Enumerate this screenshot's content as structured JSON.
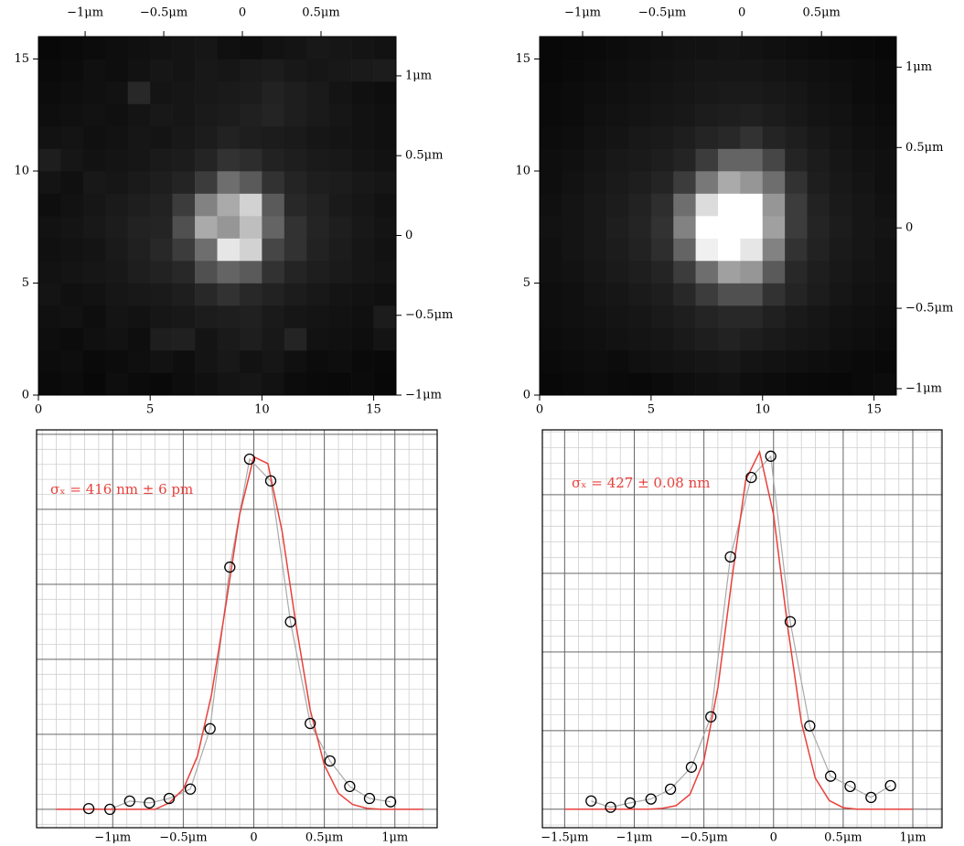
{
  "chart_data": [
    {
      "type": "heatmap",
      "colormap": "gray",
      "zlim": [
        0,
        255
      ],
      "xlim": [
        0,
        16
      ],
      "ylim": [
        0,
        16
      ],
      "xticks": [
        0,
        5,
        10,
        15
      ],
      "yticks": [
        0,
        5,
        10,
        15
      ],
      "x2lim": [
        -1.297,
        0.977
      ],
      "x2ticks": [
        {
          "value": -1,
          "label": "−1μm"
        },
        {
          "value": -0.5,
          "label": "−0.5μm"
        },
        0,
        {
          "value": 0.5,
          "label": "0.5μm"
        }
      ],
      "y2lim": [
        -1,
        1.246
      ],
      "y2ticks": [
        {
          "value": 1,
          "label": "1μm"
        },
        {
          "value": 0.5,
          "label": "0.5μm"
        },
        0,
        {
          "value": -0.5,
          "label": "−0.5μm"
        },
        {
          "value": -1,
          "label": "−1μm"
        }
      ],
      "z": [
        [
          10,
          12,
          8,
          14,
          11,
          9,
          13,
          16,
          20,
          22,
          18,
          12,
          10,
          9,
          11,
          8
        ],
        [
          12,
          14,
          10,
          12,
          15,
          18,
          14,
          20,
          24,
          18,
          22,
          16,
          12,
          14,
          10,
          9
        ],
        [
          14,
          12,
          16,
          18,
          14,
          30,
          32,
          20,
          26,
          30,
          24,
          36,
          18,
          16,
          14,
          20
        ],
        [
          16,
          18,
          14,
          20,
          18,
          22,
          24,
          28,
          30,
          32,
          26,
          22,
          20,
          18,
          16,
          28
        ],
        [
          20,
          16,
          18,
          22,
          24,
          26,
          30,
          40,
          50,
          40,
          34,
          28,
          24,
          20,
          18,
          16
        ],
        [
          18,
          20,
          22,
          24,
          30,
          34,
          40,
          80,
          100,
          90,
          50,
          36,
          30,
          26,
          22,
          20
        ],
        [
          16,
          18,
          20,
          26,
          32,
          40,
          60,
          110,
          230,
          210,
          70,
          50,
          34,
          28,
          22,
          18
        ],
        [
          18,
          20,
          24,
          28,
          34,
          36,
          80,
          170,
          150,
          190,
          100,
          50,
          36,
          30,
          24,
          20
        ],
        [
          14,
          18,
          22,
          26,
          30,
          34,
          60,
          130,
          170,
          210,
          90,
          40,
          34,
          26,
          22,
          18
        ],
        [
          20,
          16,
          24,
          22,
          26,
          30,
          36,
          60,
          110,
          90,
          50,
          36,
          30,
          28,
          24,
          22
        ],
        [
          30,
          22,
          18,
          20,
          22,
          26,
          28,
          36,
          50,
          45,
          34,
          30,
          26,
          24,
          20,
          18
        ],
        [
          18,
          20,
          16,
          18,
          22,
          20,
          24,
          28,
          34,
          30,
          28,
          26,
          22,
          20,
          18,
          16
        ],
        [
          14,
          16,
          18,
          16,
          20,
          24,
          22,
          26,
          28,
          32,
          36,
          30,
          26,
          22,
          18,
          16
        ],
        [
          12,
          14,
          16,
          18,
          40,
          20,
          22,
          24,
          26,
          28,
          34,
          30,
          26,
          20,
          16,
          14
        ],
        [
          10,
          12,
          16,
          14,
          18,
          22,
          20,
          24,
          22,
          26,
          28,
          24,
          22,
          24,
          26,
          28
        ],
        [
          8,
          10,
          12,
          14,
          16,
          18,
          20,
          22,
          16,
          14,
          18,
          20,
          24,
          22,
          20,
          18
        ]
      ]
    },
    {
      "type": "heatmap",
      "colormap": "gray",
      "zlim": [
        0,
        255
      ],
      "xlim": [
        0,
        16
      ],
      "ylim": [
        0,
        16
      ],
      "xticks": [
        0,
        5,
        10,
        15
      ],
      "yticks": [
        0,
        5,
        10,
        15
      ],
      "x2lim": [
        -1.27,
        0.97
      ],
      "x2ticks": [
        {
          "value": -1,
          "label": "−1μm"
        },
        {
          "value": -0.5,
          "label": "−0.5μm"
        },
        0,
        {
          "value": 0.5,
          "label": "0.5μm"
        }
      ],
      "y2lim": [
        -1.04,
        1.19
      ],
      "y2ticks": [
        {
          "value": 1,
          "label": "1μm"
        },
        {
          "value": 0.5,
          "label": "0.5μm"
        },
        0,
        {
          "value": -0.5,
          "label": "−0.5μm"
        },
        {
          "value": -1,
          "label": "−1μm"
        }
      ],
      "z": [
        [
          8,
          10,
          12,
          10,
          9,
          11,
          14,
          16,
          18,
          14,
          12,
          10,
          9,
          8,
          10,
          12
        ],
        [
          10,
          12,
          14,
          12,
          16,
          18,
          20,
          22,
          24,
          20,
          18,
          16,
          14,
          12,
          10,
          9
        ],
        [
          12,
          14,
          16,
          18,
          20,
          22,
          26,
          30,
          34,
          30,
          26,
          22,
          20,
          16,
          14,
          12
        ],
        [
          14,
          16,
          18,
          20,
          22,
          26,
          30,
          36,
          40,
          40,
          32,
          26,
          22,
          18,
          16,
          14
        ],
        [
          14,
          16,
          20,
          22,
          26,
          30,
          40,
          60,
          80,
          80,
          50,
          36,
          28,
          22,
          18,
          16
        ],
        [
          16,
          18,
          22,
          26,
          30,
          36,
          60,
          110,
          160,
          150,
          90,
          40,
          30,
          24,
          20,
          18
        ],
        [
          16,
          20,
          24,
          28,
          34,
          46,
          100,
          240,
          255,
          230,
          130,
          50,
          34,
          26,
          22,
          18
        ],
        [
          18,
          20,
          24,
          30,
          36,
          50,
          130,
          255,
          255,
          255,
          160,
          60,
          36,
          28,
          22,
          20
        ],
        [
          16,
          20,
          24,
          28,
          34,
          46,
          110,
          220,
          255,
          255,
          150,
          60,
          34,
          26,
          22,
          18
        ],
        [
          14,
          18,
          22,
          26,
          30,
          36,
          60,
          120,
          170,
          150,
          110,
          50,
          30,
          24,
          20,
          16
        ],
        [
          14,
          16,
          20,
          24,
          26,
          30,
          36,
          60,
          100,
          100,
          70,
          36,
          28,
          22,
          18,
          16
        ],
        [
          12,
          14,
          18,
          20,
          24,
          26,
          30,
          36,
          40,
          50,
          36,
          30,
          24,
          20,
          16,
          14
        ],
        [
          10,
          12,
          16,
          18,
          20,
          22,
          24,
          28,
          30,
          32,
          28,
          24,
          20,
          18,
          14,
          12
        ],
        [
          10,
          12,
          14,
          16,
          18,
          20,
          22,
          24,
          26,
          26,
          24,
          22,
          18,
          16,
          12,
          10
        ],
        [
          8,
          10,
          12,
          14,
          16,
          18,
          20,
          22,
          22,
          22,
          20,
          18,
          16,
          14,
          12,
          10
        ],
        [
          8,
          9,
          10,
          12,
          14,
          16,
          18,
          18,
          20,
          18,
          16,
          14,
          12,
          10,
          9,
          8
        ]
      ]
    },
    {
      "type": "line",
      "annotation": "σₓ = 416 nm ± 6 pm",
      "annotation_color": "#e8413c",
      "xlim": [
        -1.54,
        1.3
      ],
      "ylim": [
        -0.049,
        1.012
      ],
      "xticks": [
        {
          "value": -1,
          "label": "−1μm"
        },
        {
          "value": -0.5,
          "label": "−0.5μm"
        },
        0,
        {
          "value": 0.5,
          "label": "0.5μm"
        },
        {
          "value": 1,
          "label": "1μm"
        }
      ],
      "yticks": [
        0,
        0.2,
        0.4,
        0.6,
        0.8,
        1.0
      ],
      "xminor": [
        -1.5,
        -1.4,
        -1.3,
        -1.2,
        -1.1,
        -1.0,
        -0.9,
        -0.8,
        -0.7,
        -0.6,
        -0.5,
        -0.4,
        -0.3,
        -0.2,
        -0.1,
        0,
        0.1,
        0.2,
        0.3,
        0.4,
        0.5,
        0.6,
        0.7,
        0.8,
        0.9,
        1.0,
        1.1,
        1.2,
        1.3
      ],
      "yminor": [
        -0.04,
        0,
        0.04,
        0.08,
        0.12,
        0.16,
        0.2,
        0.24,
        0.28,
        0.32,
        0.36,
        0.4,
        0.44,
        0.48,
        0.52,
        0.56,
        0.6,
        0.64,
        0.68,
        0.72,
        0.76,
        0.8,
        0.84,
        0.88,
        0.92,
        0.96,
        1.0
      ],
      "data": {
        "color": "#000000",
        "line_color": "#aaaaaa",
        "x": [
          -1.17,
          -1.02,
          -0.88,
          -0.74,
          -0.6,
          -0.45,
          -0.31,
          -0.17,
          -0.03,
          0.12,
          0.26,
          0.4,
          0.54,
          0.68,
          0.82,
          0.97
        ],
        "y": [
          0.002,
          0,
          0.022,
          0.017,
          0.029,
          0.054,
          0.215,
          0.646,
          0.934,
          0.876,
          0.5,
          0.229,
          0.129,
          0.061,
          0.029,
          0.02
        ]
      },
      "fit": {
        "color": "#e8413c",
        "x": [
          -1.4,
          -1.3,
          -1.2,
          -1.1,
          -1.0,
          -0.9,
          -0.8,
          -0.7,
          -0.6,
          -0.5,
          -0.4,
          -0.3,
          -0.2,
          -0.1,
          0,
          0.1,
          0.2,
          0.3,
          0.4,
          0.5,
          0.6,
          0.7,
          0.8,
          0.9,
          1.0,
          1.1,
          1.2
        ],
        "y": [
          0,
          0,
          0,
          0,
          0,
          0,
          0,
          0,
          0.017,
          0.054,
          0.141,
          0.305,
          0.541,
          0.787,
          0.94,
          0.922,
          0.742,
          0.49,
          0.265,
          0.118,
          0.043,
          0.013,
          0.003,
          0,
          0,
          0,
          0
        ]
      }
    },
    {
      "type": "line",
      "annotation": "σₓ = 427 ± 0.08 nm",
      "annotation_color": "#e8413c",
      "xlim": [
        -1.66,
        1.21
      ],
      "ylim": [
        -0.047,
        0.965
      ],
      "xticks": [
        {
          "value": -1.5,
          "label": "−1.5μm"
        },
        {
          "value": -1,
          "label": "−1μm"
        },
        {
          "value": -0.5,
          "label": "−0.5μm"
        },
        0,
        {
          "value": 0.5,
          "label": "0.5μm"
        },
        {
          "value": 1,
          "label": "1μm"
        }
      ],
      "yticks": [
        0,
        0.2,
        0.4,
        0.6,
        0.8
      ],
      "xminor": [
        -1.6,
        -1.5,
        -1.4,
        -1.3,
        -1.2,
        -1.1,
        -1.0,
        -0.9,
        -0.8,
        -0.7,
        -0.6,
        -0.5,
        -0.4,
        -0.3,
        -0.2,
        -0.1,
        0,
        0.1,
        0.2,
        0.3,
        0.4,
        0.5,
        0.6,
        0.7,
        0.8,
        0.9,
        1.0,
        1.1,
        1.2
      ],
      "yminor": [
        -0.04,
        0,
        0.04,
        0.08,
        0.12,
        0.16,
        0.2,
        0.24,
        0.28,
        0.32,
        0.36,
        0.4,
        0.44,
        0.48,
        0.52,
        0.56,
        0.6,
        0.64,
        0.68,
        0.72,
        0.76,
        0.8,
        0.84,
        0.88,
        0.92,
        0.96
      ],
      "data": {
        "color": "#000000",
        "line_color": "#aaaaaa",
        "x": [
          -1.31,
          -1.17,
          -1.03,
          -0.88,
          -0.74,
          -0.59,
          -0.45,
          -0.31,
          -0.16,
          -0.02,
          0.12,
          0.26,
          0.41,
          0.55,
          0.7,
          0.84
        ],
        "y": [
          0.021,
          0.005,
          0.016,
          0.026,
          0.051,
          0.107,
          0.235,
          0.642,
          0.844,
          0.898,
          0.477,
          0.212,
          0.084,
          0.058,
          0.03,
          0.06
        ]
      },
      "fit": {
        "color": "#e8413c",
        "x": [
          -1.5,
          -1.4,
          -1.3,
          -1.2,
          -1.1,
          -1.0,
          -0.9,
          -0.8,
          -0.7,
          -0.6,
          -0.5,
          -0.4,
          -0.3,
          -0.2,
          -0.1,
          0,
          0.1,
          0.2,
          0.3,
          0.4,
          0.5,
          0.6,
          0.7,
          0.8,
          0.9,
          1.0
        ],
        "y": [
          0,
          0,
          0,
          0,
          0,
          0,
          0,
          0.002,
          0.009,
          0.038,
          0.124,
          0.309,
          0.583,
          0.837,
          0.909,
          0.749,
          0.468,
          0.221,
          0.079,
          0.022,
          0.004,
          0,
          0,
          0,
          0,
          0
        ]
      }
    }
  ]
}
